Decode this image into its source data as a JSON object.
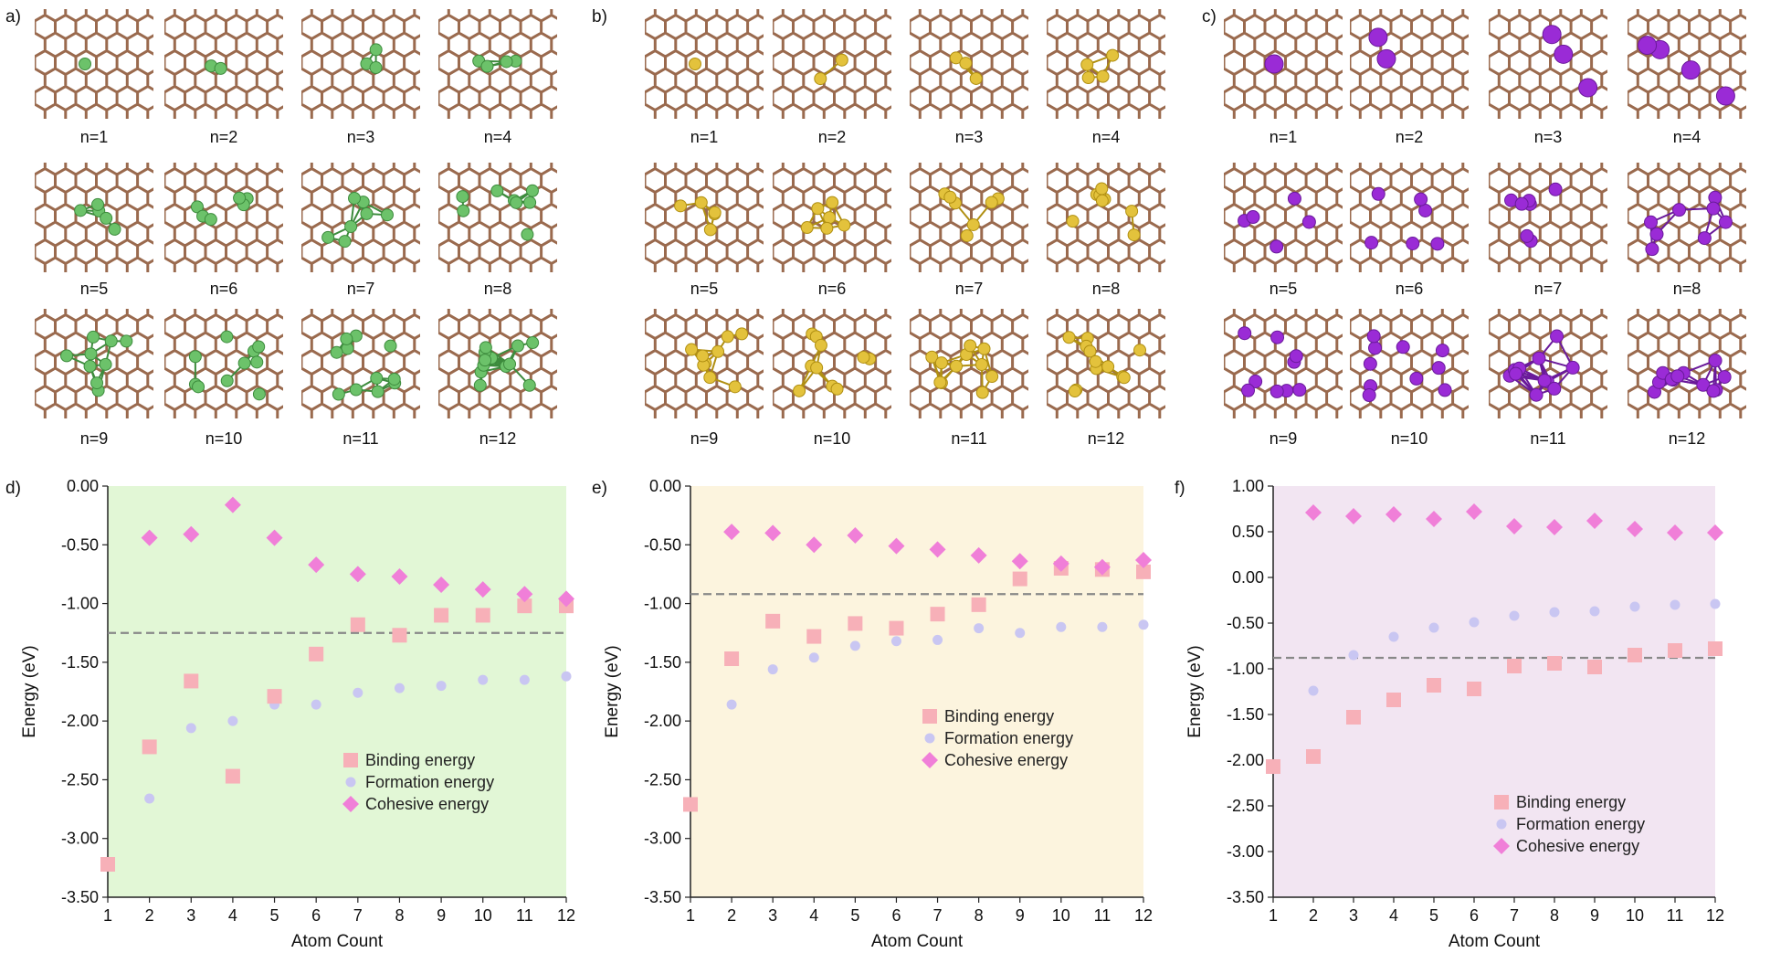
{
  "panels": {
    "a": {
      "letter": "a)",
      "element_color": "#6cc26a",
      "element_edge": "#3d8b3d"
    },
    "b": {
      "letter": "b)",
      "element_color": "#e3c23c",
      "element_edge": "#b08f12"
    },
    "c": {
      "letter": "c)",
      "element_color": "#9a2bd6",
      "element_edge": "#6a1a9a"
    },
    "substrate_color": "#9a6a4e",
    "cluster_labels": [
      "n=1",
      "n=2",
      "n=3",
      "n=4",
      "n=5",
      "n=6",
      "n=7",
      "n=8",
      "n=9",
      "n=10",
      "n=11",
      "n=12"
    ]
  },
  "chart_data": [
    {
      "id": "d",
      "letter": "d)",
      "type": "scatter",
      "background": "#e2f7d6",
      "xlabel": "Atom Count",
      "ylabel": "Energy (eV)",
      "xlim": [
        1,
        12
      ],
      "ylim": [
        -3.5,
        0.0
      ],
      "yticks": [
        0.0,
        -0.5,
        -1.0,
        -1.5,
        -2.0,
        -2.5,
        -3.0,
        -3.5
      ],
      "ytick_labels": [
        "0.00",
        "-0.50",
        "-1.00",
        "-1.50",
        "-2.00",
        "-2.50",
        "-3.00",
        "-3.50"
      ],
      "xticks": [
        "1",
        "2",
        "3",
        "4",
        "5",
        "6",
        "7",
        "8",
        "9",
        "10",
        "11",
        "12"
      ],
      "reference_line": -1.25,
      "legend_position": "lower-right",
      "series": [
        {
          "name": "Binding energy",
          "marker": "square",
          "color": "#f7b0b8",
          "x": [
            1,
            2,
            3,
            4,
            5,
            6,
            7,
            8,
            9,
            10,
            11,
            12
          ],
          "values": [
            -3.22,
            -2.22,
            -1.66,
            -2.47,
            -1.79,
            -1.43,
            -1.18,
            -1.27,
            -1.1,
            -1.1,
            -1.02,
            -1.02
          ]
        },
        {
          "name": "Formation energy",
          "marker": "circle",
          "color": "#c9c6f2",
          "x": [
            1,
            2,
            3,
            4,
            5,
            6,
            7,
            8,
            9,
            10,
            11,
            12
          ],
          "values": [
            -3.22,
            -2.66,
            -2.06,
            -2.0,
            -1.86,
            -1.86,
            -1.76,
            -1.72,
            -1.7,
            -1.65,
            -1.65,
            -1.62
          ]
        },
        {
          "name": "Cohesive energy",
          "marker": "diamond",
          "color": "#f07fd8",
          "x": [
            2,
            3,
            4,
            5,
            6,
            7,
            8,
            9,
            10,
            11,
            12
          ],
          "values": [
            -0.44,
            -0.41,
            -0.16,
            -0.44,
            -0.67,
            -0.75,
            -0.77,
            -0.84,
            -0.88,
            -0.92,
            -0.96
          ]
        }
      ]
    },
    {
      "id": "e",
      "letter": "e)",
      "type": "scatter",
      "background": "#fcf4de",
      "xlabel": "Atom Count",
      "ylabel": "Energy (eV)",
      "xlim": [
        1,
        12
      ],
      "ylim": [
        -3.5,
        0.0
      ],
      "yticks": [
        0.0,
        -0.5,
        -1.0,
        -1.5,
        -2.0,
        -2.5,
        -3.0,
        -3.5
      ],
      "ytick_labels": [
        "0.00",
        "-0.50",
        "-1.00",
        "-1.50",
        "-2.00",
        "-2.50",
        "-3.00",
        "-3.50"
      ],
      "xticks": [
        "1",
        "2",
        "3",
        "4",
        "5",
        "6",
        "7",
        "8",
        "9",
        "10",
        "11",
        "12"
      ],
      "reference_line": -0.92,
      "legend_position": "center-right",
      "series": [
        {
          "name": "Binding energy",
          "marker": "square",
          "color": "#f7b0b8",
          "x": [
            1,
            2,
            3,
            4,
            5,
            6,
            7,
            8,
            9,
            10,
            11,
            12
          ],
          "values": [
            -2.71,
            -1.47,
            -1.15,
            -1.28,
            -1.17,
            -1.21,
            -1.09,
            -1.01,
            -0.79,
            -0.7,
            -0.71,
            -0.73
          ]
        },
        {
          "name": "Formation energy",
          "marker": "circle",
          "color": "#c9c6f2",
          "x": [
            1,
            2,
            3,
            4,
            5,
            6,
            7,
            8,
            9,
            10,
            11,
            12
          ],
          "values": [
            -2.71,
            -1.86,
            -1.56,
            -1.46,
            -1.36,
            -1.32,
            -1.31,
            -1.21,
            -1.25,
            -1.2,
            -1.2,
            -1.18
          ]
        },
        {
          "name": "Cohesive energy",
          "marker": "diamond",
          "color": "#f07fd8",
          "x": [
            2,
            3,
            4,
            5,
            6,
            7,
            8,
            9,
            10,
            11,
            12
          ],
          "values": [
            -0.39,
            -0.4,
            -0.5,
            -0.42,
            -0.51,
            -0.54,
            -0.59,
            -0.64,
            -0.66,
            -0.69,
            -0.63
          ]
        }
      ]
    },
    {
      "id": "f",
      "letter": "f)",
      "type": "scatter",
      "background": "#f2e5f2",
      "xlabel": "Atom Count",
      "ylabel": "Energy (eV)",
      "xlim": [
        1,
        12
      ],
      "ylim": [
        -3.5,
        1.0
      ],
      "yticks": [
        1.0,
        0.5,
        0.0,
        -0.5,
        -1.0,
        -1.5,
        -2.0,
        -2.5,
        -3.0,
        -3.5
      ],
      "ytick_labels": [
        "1.00",
        "0.50",
        "0.00",
        "-0.50",
        "-1.00",
        "-1.50",
        "-2.00",
        "-2.50",
        "-3.00",
        "-3.50"
      ],
      "xticks": [
        "1",
        "2",
        "3",
        "4",
        "5",
        "6",
        "7",
        "8",
        "9",
        "10",
        "11",
        "12"
      ],
      "reference_line": -0.88,
      "legend_position": "lower-right",
      "series": [
        {
          "name": "Binding energy",
          "marker": "square",
          "color": "#f7b0b8",
          "x": [
            1,
            2,
            3,
            4,
            5,
            6,
            7,
            8,
            9,
            10,
            11,
            12
          ],
          "values": [
            -2.07,
            -1.96,
            -1.53,
            -1.34,
            -1.18,
            -1.22,
            -0.97,
            -0.94,
            -0.98,
            -0.85,
            -0.8,
            -0.78
          ]
        },
        {
          "name": "Formation energy",
          "marker": "circle",
          "color": "#c9c6f2",
          "x": [
            1,
            2,
            3,
            4,
            5,
            6,
            7,
            8,
            9,
            10,
            11,
            12
          ],
          "values": [
            -2.07,
            -1.24,
            -0.85,
            -0.65,
            -0.55,
            -0.49,
            -0.42,
            -0.38,
            -0.37,
            -0.32,
            -0.3,
            -0.29
          ]
        },
        {
          "name": "Cohesive energy",
          "marker": "diamond",
          "color": "#f07fd8",
          "x": [
            2,
            3,
            4,
            5,
            6,
            7,
            8,
            9,
            10,
            11,
            12
          ],
          "values": [
            0.71,
            0.67,
            0.69,
            0.64,
            0.72,
            0.56,
            0.55,
            0.62,
            0.53,
            0.49,
            0.49
          ]
        }
      ]
    }
  ]
}
